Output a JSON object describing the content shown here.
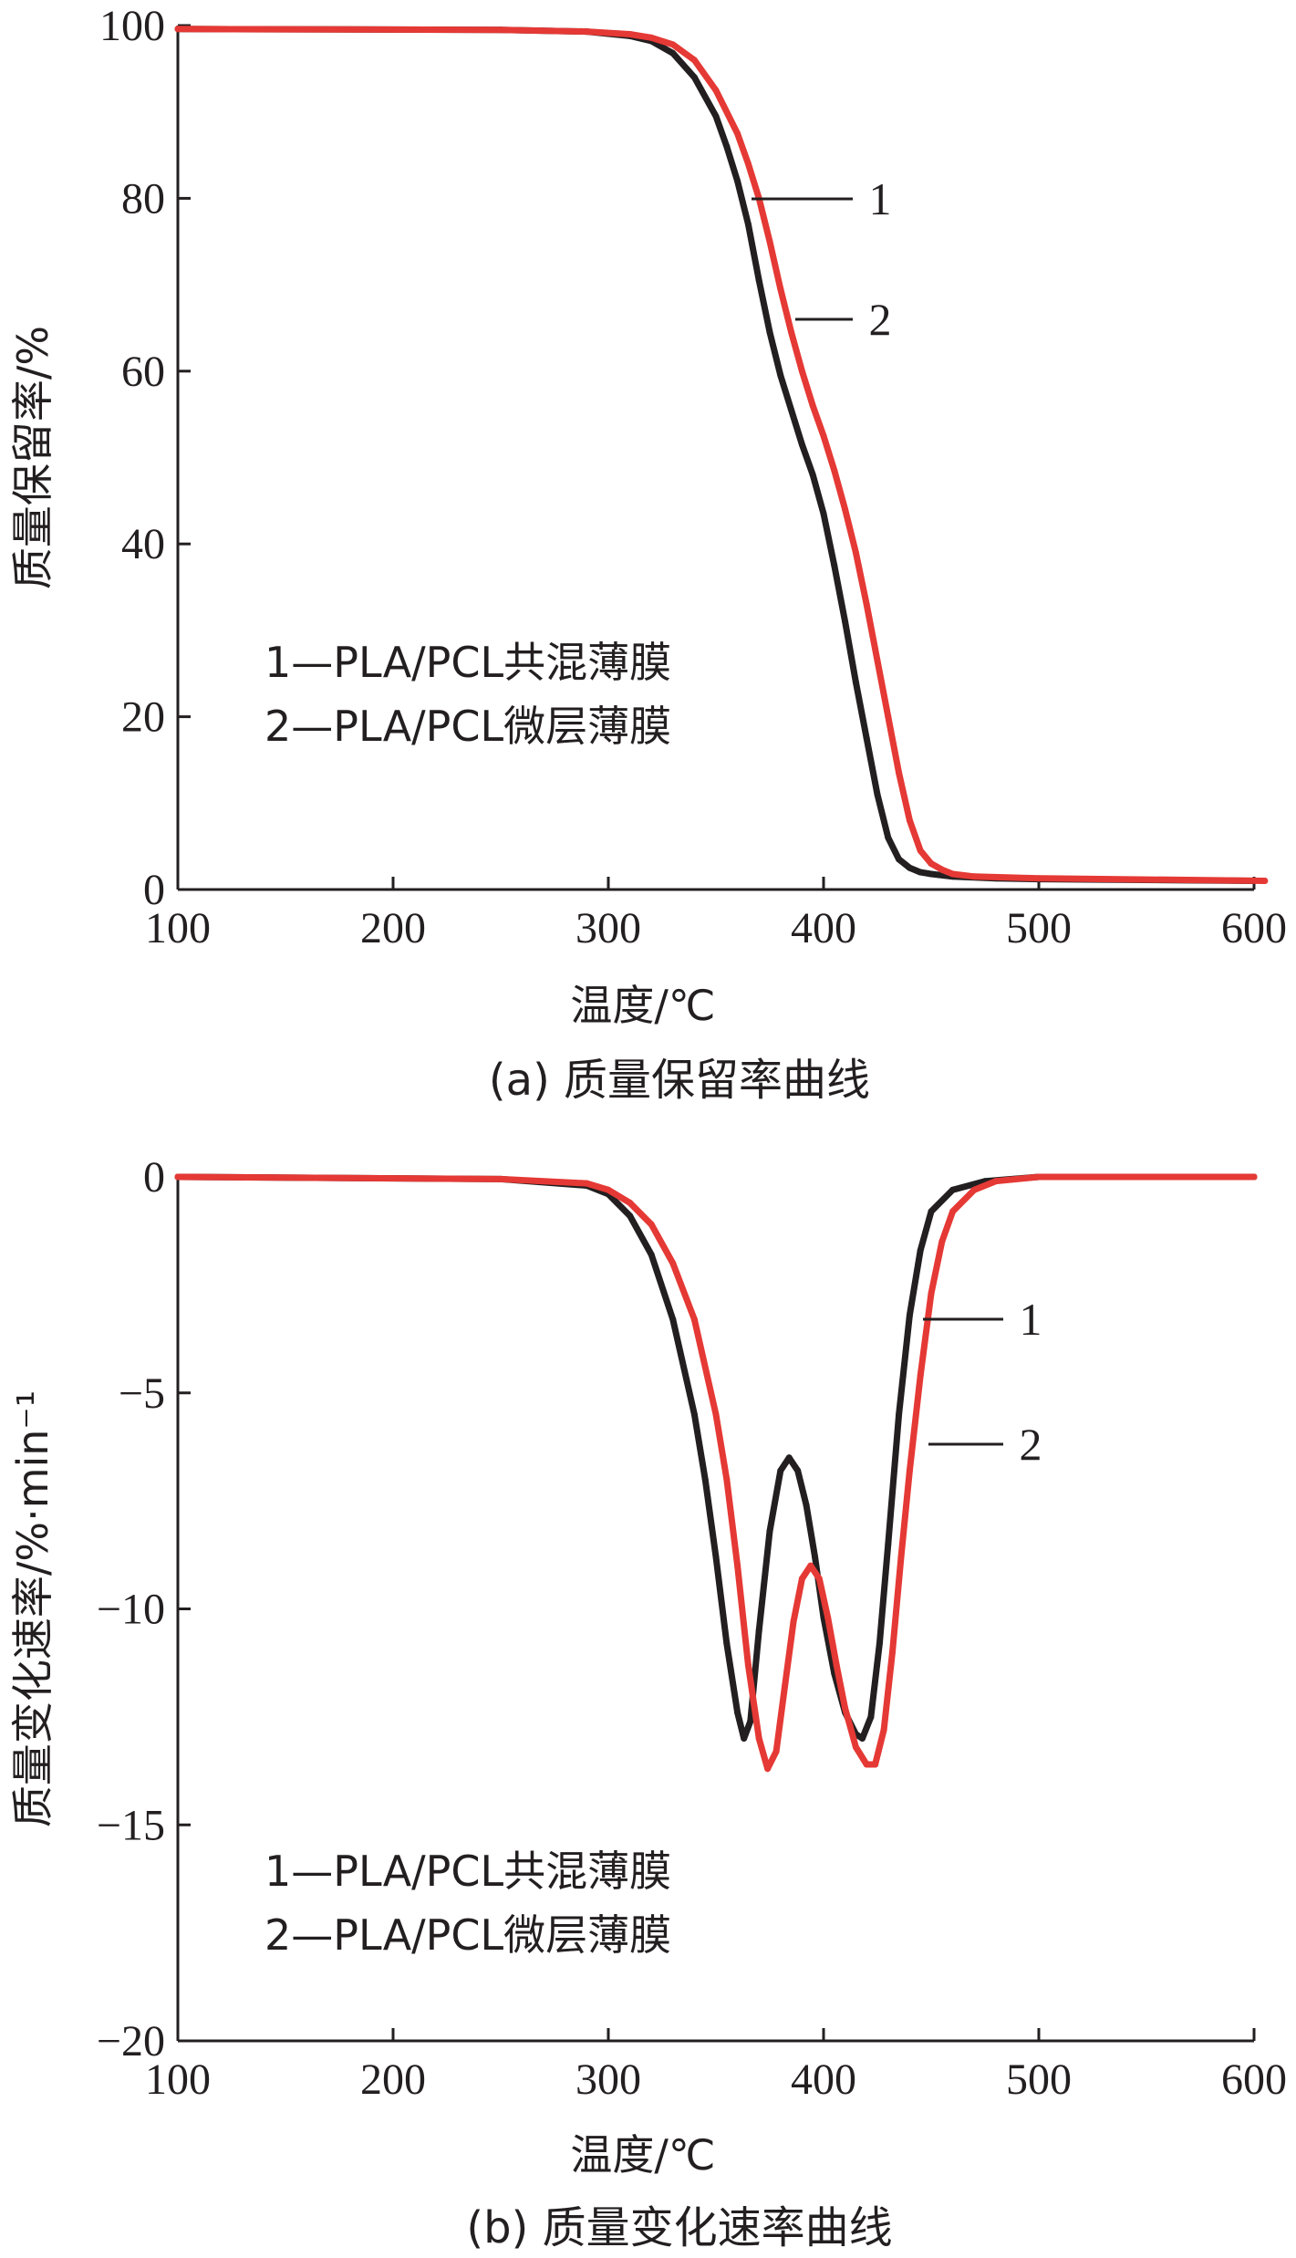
{
  "chart_data": [
    {
      "panel": "a",
      "type": "line",
      "caption": "(a) 质量保留率曲线",
      "xlabel": "温度/℃",
      "ylabel": "质量保留率/%",
      "xlim": [
        100,
        600
      ],
      "ylim": [
        0,
        100
      ],
      "xticks": [
        "100",
        "200",
        "300",
        "400",
        "500",
        "600"
      ],
      "yticks": [
        "0",
        "20",
        "40",
        "60",
        "80",
        "100"
      ],
      "grid": false,
      "legend": [
        "1—PLA/PCL共混薄膜",
        "2—PLA/PCL微层薄膜"
      ],
      "callouts": [
        "1",
        "2"
      ],
      "series": [
        {
          "name": "1—PLA/PCL共混薄膜",
          "color": "#231f20",
          "x": [
            100,
            250,
            290,
            310,
            320,
            330,
            340,
            350,
            355,
            360,
            365,
            370,
            375,
            380,
            385,
            390,
            395,
            400,
            405,
            410,
            415,
            420,
            425,
            430,
            435,
            440,
            445,
            450,
            460,
            480,
            500,
            600
          ],
          "y": [
            99.6,
            99.5,
            99.3,
            98.8,
            98.2,
            96.8,
            94.0,
            89.5,
            86.0,
            82.0,
            77.0,
            70.5,
            64.5,
            59.5,
            55.5,
            51.5,
            48.0,
            43.5,
            37.5,
            31.0,
            24.0,
            17.5,
            11.0,
            6.0,
            3.5,
            2.5,
            2.0,
            1.8,
            1.5,
            1.3,
            1.2,
            1.0
          ]
        },
        {
          "name": "2—PLA/PCL微层薄膜",
          "color": "#e53935",
          "x": [
            100,
            250,
            290,
            310,
            320,
            330,
            340,
            350,
            360,
            365,
            370,
            375,
            380,
            385,
            390,
            395,
            400,
            405,
            410,
            415,
            420,
            425,
            430,
            435,
            440,
            445,
            450,
            455,
            460,
            470,
            500,
            605
          ],
          "y": [
            99.6,
            99.5,
            99.3,
            99.0,
            98.6,
            97.8,
            96.0,
            92.5,
            87.5,
            84.0,
            80.0,
            75.0,
            69.5,
            64.5,
            60.0,
            56.0,
            52.5,
            48.5,
            44.0,
            39.0,
            33.0,
            26.5,
            20.0,
            13.5,
            8.0,
            4.5,
            3.0,
            2.3,
            1.8,
            1.5,
            1.3,
            1.0
          ]
        }
      ]
    },
    {
      "panel": "b",
      "type": "line",
      "caption": "(b) 质量变化速率曲线",
      "xlabel": "温度/℃",
      "ylabel": "质量变化速率/%·min⁻¹",
      "xlim": [
        100,
        600
      ],
      "ylim": [
        -20,
        0
      ],
      "xticks": [
        "100",
        "200",
        "300",
        "400",
        "500",
        "600"
      ],
      "yticks": [
        "0",
        "-5",
        "-10",
        "-15",
        "-20"
      ],
      "grid": false,
      "legend": [
        "1—PLA/PCL共混薄膜",
        "2—PLA/PCL微层薄膜"
      ],
      "callouts": [
        "1",
        "2"
      ],
      "series": [
        {
          "name": "1—PLA/PCL共混薄膜",
          "color": "#231f20",
          "x": [
            100,
            250,
            290,
            300,
            310,
            320,
            330,
            340,
            345,
            350,
            355,
            360,
            363,
            366,
            370,
            375,
            380,
            384,
            388,
            392,
            396,
            400,
            405,
            410,
            415,
            418,
            422,
            426,
            430,
            435,
            440,
            445,
            450,
            460,
            475,
            500,
            600
          ],
          "y": [
            0.0,
            -0.05,
            -0.2,
            -0.4,
            -0.9,
            -1.8,
            -3.3,
            -5.5,
            -7.0,
            -8.8,
            -10.8,
            -12.4,
            -13.0,
            -12.6,
            -10.5,
            -8.2,
            -6.8,
            -6.5,
            -6.8,
            -7.6,
            -8.8,
            -10.2,
            -11.5,
            -12.4,
            -12.9,
            -13.0,
            -12.5,
            -10.8,
            -8.5,
            -5.5,
            -3.2,
            -1.7,
            -0.8,
            -0.3,
            -0.1,
            0.0,
            0.0
          ]
        },
        {
          "name": "2—PLA/PCL微层薄膜",
          "color": "#e53935",
          "x": [
            100,
            250,
            290,
            300,
            310,
            320,
            330,
            340,
            350,
            355,
            360,
            365,
            370,
            374,
            378,
            382,
            386,
            390,
            394,
            398,
            402,
            406,
            410,
            415,
            420,
            424,
            428,
            432,
            436,
            440,
            445,
            450,
            455,
            460,
            470,
            480,
            500,
            600
          ],
          "y": [
            0.0,
            -0.05,
            -0.15,
            -0.3,
            -0.6,
            -1.1,
            -2.0,
            -3.3,
            -5.5,
            -7.0,
            -9.0,
            -11.3,
            -13.0,
            -13.7,
            -13.3,
            -11.8,
            -10.3,
            -9.3,
            -9.0,
            -9.3,
            -10.2,
            -11.3,
            -12.3,
            -13.2,
            -13.6,
            -13.6,
            -12.8,
            -11.0,
            -8.8,
            -6.8,
            -4.6,
            -2.7,
            -1.5,
            -0.8,
            -0.3,
            -0.1,
            0.0,
            0.0
          ]
        }
      ]
    }
  ]
}
